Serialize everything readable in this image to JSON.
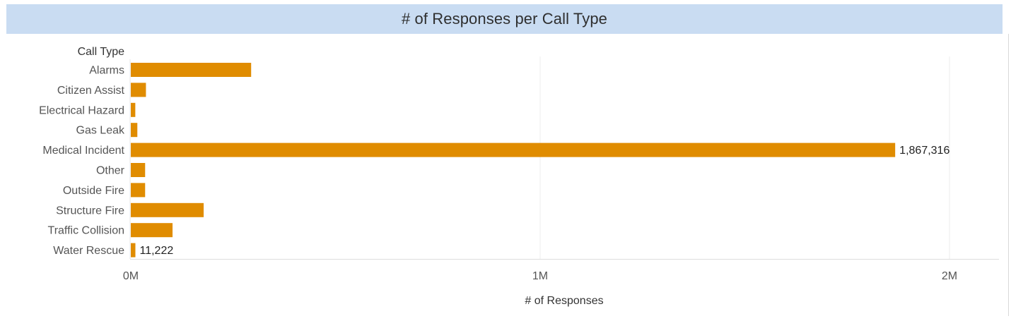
{
  "title": "# of Responses per Call Type",
  "chart_data": {
    "type": "bar",
    "orientation": "horizontal",
    "title": "# of Responses per Call Type",
    "ylabel": "Call Type",
    "xlabel": "# of Responses",
    "categories": [
      "Alarms",
      "Citizen Assist",
      "Electrical Hazard",
      "Gas Leak",
      "Medical Incident",
      "Other",
      "Outside Fire",
      "Structure Fire",
      "Traffic Collision",
      "Water Rescue"
    ],
    "values": [
      294000,
      37000,
      11000,
      16000,
      1867316,
      35000,
      35000,
      178000,
      102000,
      11222
    ],
    "data_labels": {
      "Medical Incident": "1,867,316",
      "Water Rescue": "11,222"
    },
    "xticks": [
      {
        "value": 0,
        "label": "0M"
      },
      {
        "value": 1000000,
        "label": "1M"
      },
      {
        "value": 2000000,
        "label": "2M"
      }
    ],
    "xlim": [
      0,
      2000000
    ],
    "bar_color": "#e08c00",
    "grid": true
  }
}
